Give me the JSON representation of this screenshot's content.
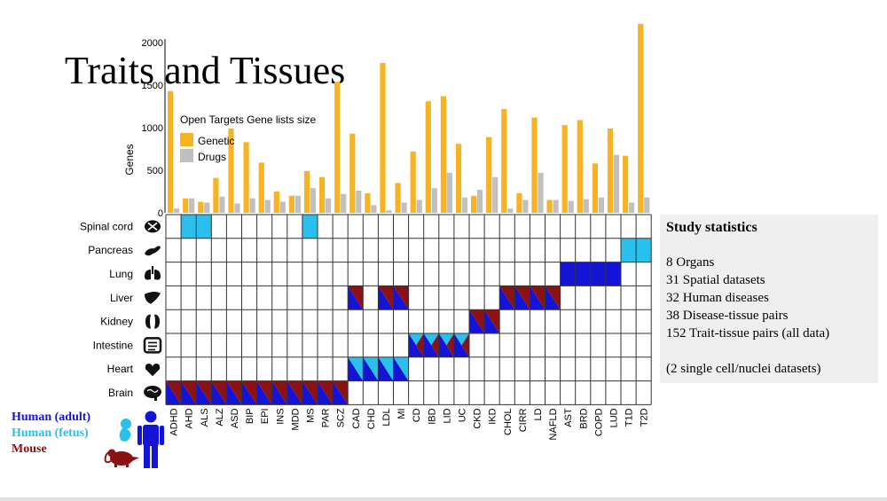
{
  "title": "Traits and Tissues",
  "chart_data": {
    "type": "bar",
    "title": "Open Targets Gene lists size",
    "ylabel": "Genes",
    "ylim": [
      0,
      2000
    ],
    "yticks": [
      "0",
      "500",
      "1000",
      "1500",
      "2000"
    ],
    "categories": [
      "ADHD",
      "AHD",
      "ALS",
      "ALZ",
      "ASD",
      "BIP",
      "EPI",
      "INS",
      "MDD",
      "MS",
      "PAR",
      "SCZ",
      "CAD",
      "CHD",
      "LDL",
      "MI",
      "CD",
      "IBD",
      "LID",
      "UC",
      "CKD",
      "IKD",
      "CHOL",
      "CIRR",
      "LD",
      "NAFLD",
      "AST",
      "BRD",
      "COPD",
      "LUD",
      "T1D",
      "T2D"
    ],
    "series": [
      {
        "name": "Genetic",
        "color": "#f7b322",
        "values": [
          1430,
          170,
          130,
          410,
          990,
          830,
          590,
          250,
          200,
          490,
          420,
          1540,
          930,
          230,
          1760,
          350,
          720,
          1310,
          1370,
          810,
          200,
          890,
          1220,
          230,
          1120,
          150,
          1030,
          1090,
          580,
          990,
          670,
          2220
        ]
      },
      {
        "name": "Drugs",
        "color": "#c0c0c0",
        "values": [
          50,
          170,
          120,
          190,
          110,
          170,
          150,
          130,
          200,
          290,
          170,
          220,
          260,
          90,
          30,
          120,
          150,
          290,
          470,
          180,
          270,
          420,
          50,
          150,
          470,
          150,
          140,
          160,
          180,
          680,
          120,
          180
        ]
      }
    ],
    "heatmap": {
      "tissues": [
        "Spinal cord",
        "Pancreas",
        "Lung",
        "Liver",
        "Kidney",
        "Intestine",
        "Heart",
        "Brain"
      ],
      "tissue_icons": [
        "spinal-cord-icon",
        "pancreas-icon",
        "lung-icon",
        "liver-icon",
        "kidney-icon",
        "intestine-icon",
        "heart-icon",
        "brain-icon"
      ],
      "colors": {
        "human_adult": "#1414d7",
        "human_fetus": "#29c0ee",
        "mouse": "#8b1212"
      },
      "cells": [
        {
          "tissue": "Spinal cord",
          "traits": [
            "AHD",
            "ALS",
            "MS"
          ],
          "sources": [
            "fetus"
          ]
        },
        {
          "tissue": "Pancreas",
          "traits": [
            "T1D",
            "T2D"
          ],
          "sources": [
            "fetus"
          ]
        },
        {
          "tissue": "Lung",
          "traits": [
            "AST",
            "BRD",
            "COPD",
            "LUD"
          ],
          "sources": [
            "adult"
          ]
        },
        {
          "tissue": "Liver",
          "traits": [
            "CAD",
            "LDL",
            "MI",
            "CHOL",
            "CIRR",
            "LD",
            "NAFLD"
          ],
          "sources": [
            "adult",
            "mouse"
          ]
        },
        {
          "tissue": "Kidney",
          "traits": [
            "CKD",
            "IKD"
          ],
          "sources": [
            "adult",
            "mouse"
          ]
        },
        {
          "tissue": "Intestine",
          "traits": [
            "CD",
            "IBD",
            "LID",
            "UC"
          ],
          "sources": [
            "adult",
            "fetus",
            "mouse"
          ]
        },
        {
          "tissue": "Heart",
          "traits": [
            "CAD",
            "CHD",
            "LDL",
            "MI"
          ],
          "sources": [
            "adult",
            "fetus"
          ]
        },
        {
          "tissue": "Brain",
          "traits": [
            "ADHD",
            "AHD",
            "ALS",
            "ALZ",
            "ASD",
            "BIP",
            "EPI",
            "INS",
            "MDD",
            "MS",
            "PAR",
            "SCZ"
          ],
          "sources": [
            "adult",
            "mouse"
          ]
        }
      ]
    }
  },
  "legend": {
    "items": [
      {
        "label": "Human (adult)",
        "color": "#1414d7"
      },
      {
        "label": "Human (fetus)",
        "color": "#29c0ee"
      },
      {
        "label": "Mouse",
        "color": "#8b1212"
      }
    ]
  },
  "stats": {
    "title": "Study statistics",
    "lines": [
      "8 Organs",
      "31 Spatial datasets",
      "32 Human diseases",
      "38 Disease-tissue pairs",
      "152 Trait-tissue pairs (all data)",
      "(2 single cell/nuclei datasets)"
    ]
  }
}
